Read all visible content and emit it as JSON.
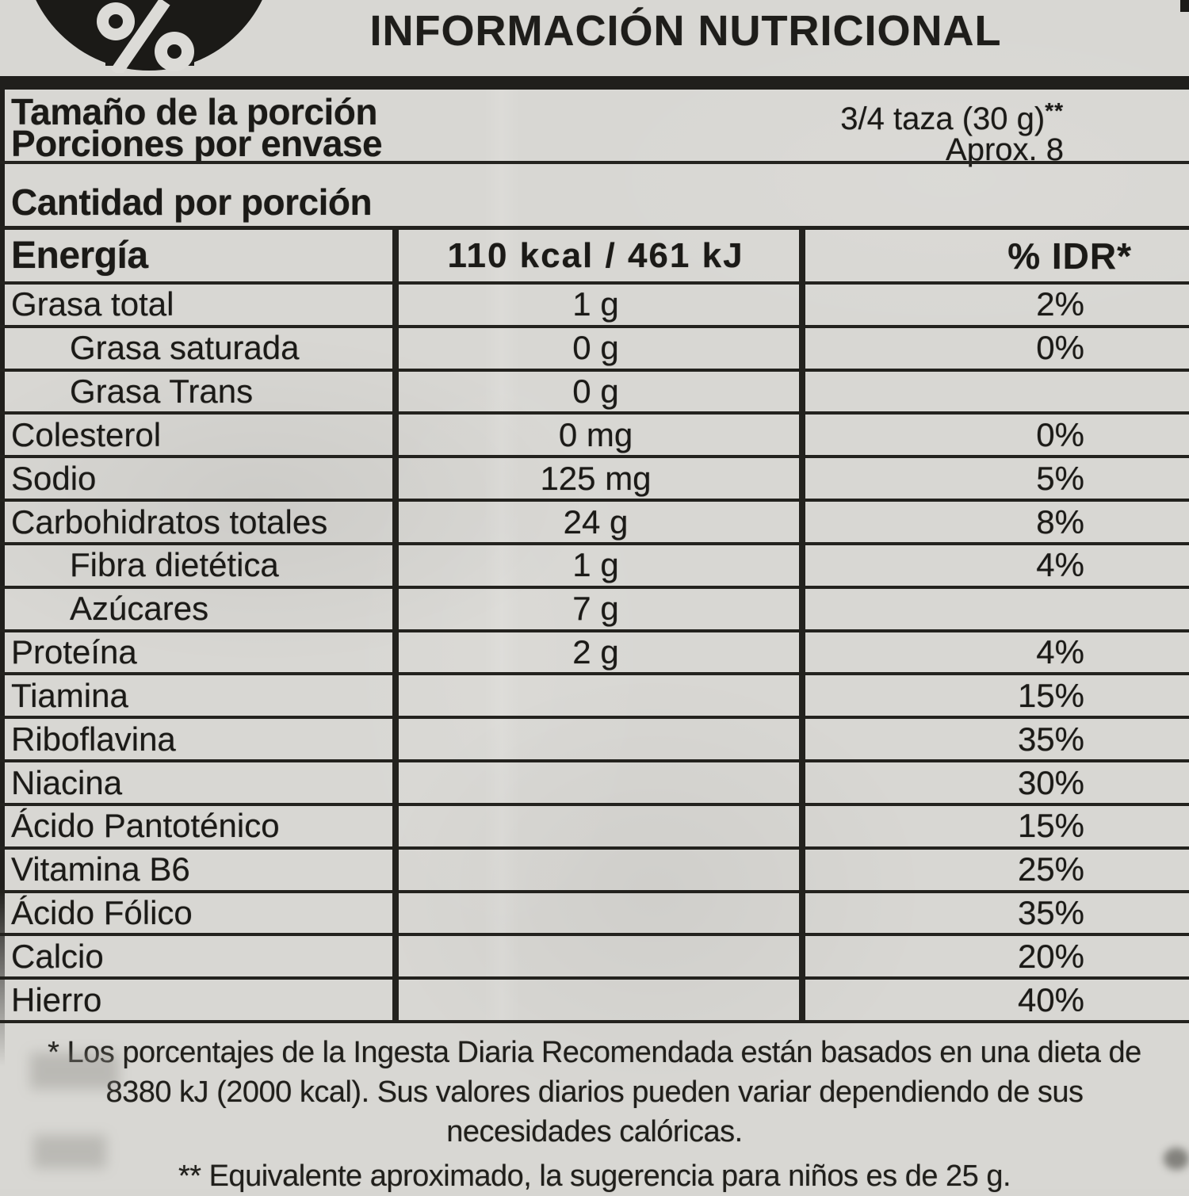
{
  "header": {
    "title": "INFORMACIÓN NUTRICIONAL",
    "logo_icon": "percent-icon"
  },
  "serving": {
    "size_label": "Tamaño de la porción",
    "size_value": "3/4 taza (30 g)",
    "size_marker": "**",
    "servings_label": "Porciones por envase",
    "servings_value": "Aprox. 8"
  },
  "amount_heading": "Cantidad por porción",
  "table": {
    "energy_label": "Energía",
    "energy_value": "110 kcal / 461 kJ",
    "idr_header": "% IDR*",
    "rows": [
      {
        "label": "Grasa total",
        "indent": false,
        "amount": "1 g",
        "idr": "2%"
      },
      {
        "label": "Grasa saturada",
        "indent": true,
        "amount": "0 g",
        "idr": "0%"
      },
      {
        "label": "Grasa Trans",
        "indent": true,
        "amount": "0 g",
        "idr": ""
      },
      {
        "label": "Colesterol",
        "indent": false,
        "amount": "0 mg",
        "idr": "0%"
      },
      {
        "label": "Sodio",
        "indent": false,
        "amount": "125 mg",
        "idr": "5%"
      },
      {
        "label": "Carbohidratos totales",
        "indent": false,
        "amount": "24 g",
        "idr": "8%"
      },
      {
        "label": "Fibra dietética",
        "indent": true,
        "amount": "1 g",
        "idr": "4%"
      },
      {
        "label": "Azúcares",
        "indent": true,
        "amount": "7 g",
        "idr": ""
      },
      {
        "label": "Proteína",
        "indent": false,
        "amount": "2 g",
        "idr": "4%"
      },
      {
        "label": "Tiamina",
        "indent": false,
        "amount": "",
        "idr": "15%"
      },
      {
        "label": "Riboflavina",
        "indent": false,
        "amount": "",
        "idr": "35%"
      },
      {
        "label": "Niacina",
        "indent": false,
        "amount": "",
        "idr": "30%"
      },
      {
        "label": "Ácido Pantoténico",
        "indent": false,
        "amount": "",
        "idr": "15%"
      },
      {
        "label": "Vitamina B6",
        "indent": false,
        "amount": "",
        "idr": "25%"
      },
      {
        "label": "Ácido Fólico",
        "indent": false,
        "amount": "",
        "idr": "35%"
      },
      {
        "label": "Calcio",
        "indent": false,
        "amount": "",
        "idr": "20%"
      },
      {
        "label": "Hierro",
        "indent": false,
        "amount": "",
        "idr": "40%"
      }
    ]
  },
  "footnotes": {
    "idr_note": "* Los porcentajes de la Ingesta Diaria Recomendada están basados en una dieta de 8380 kJ (2000 kcal). Sus valores diarios pueden variar dependiendo de sus necesidades calóricas.",
    "equivalence_note": "** Equivalente aproximado, la sugerencia para niños es de 25 g."
  },
  "colors": {
    "paper": "#d8d7d3",
    "ink": "#1b1a17"
  }
}
